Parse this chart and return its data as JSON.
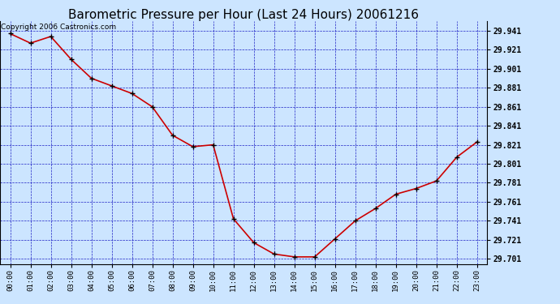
{
  "title": "Barometric Pressure per Hour (Last 24 Hours) 20061216",
  "copyright": "Copyright 2006 Castronics.com",
  "x_labels": [
    "00:00",
    "01:00",
    "02:00",
    "03:00",
    "04:00",
    "05:00",
    "06:00",
    "07:00",
    "08:00",
    "09:00",
    "10:00",
    "11:00",
    "12:00",
    "13:00",
    "14:00",
    "15:00",
    "16:00",
    "17:00",
    "18:00",
    "19:00",
    "20:00",
    "21:00",
    "22:00",
    "23:00"
  ],
  "y_values": [
    29.938,
    29.928,
    29.935,
    29.911,
    29.891,
    29.883,
    29.875,
    29.861,
    29.831,
    29.819,
    29.821,
    29.743,
    29.718,
    29.706,
    29.703,
    29.703,
    29.722,
    29.741,
    29.754,
    29.769,
    29.775,
    29.783,
    29.808,
    29.824
  ],
  "y_min": 29.695,
  "y_max": 29.951,
  "y_ticks": [
    29.701,
    29.721,
    29.741,
    29.761,
    29.781,
    29.801,
    29.821,
    29.841,
    29.861,
    29.881,
    29.901,
    29.921,
    29.941
  ],
  "line_color": "#cc0000",
  "marker_color": "#000000",
  "bg_color": "#cce5ff",
  "grid_color": "#0000bb",
  "title_color": "#000000",
  "title_fontsize": 11,
  "copyright_fontsize": 6.5
}
